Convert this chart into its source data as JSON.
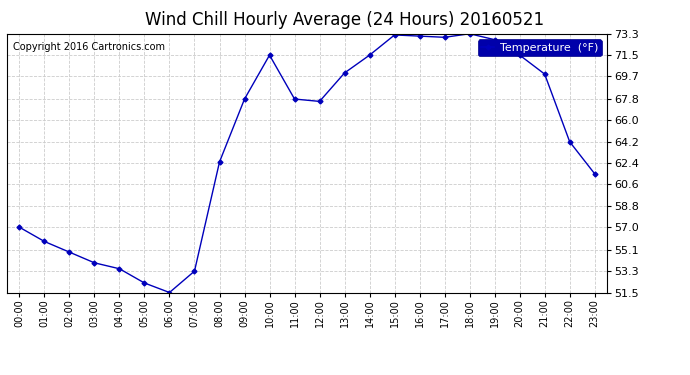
{
  "title": "Wind Chill Hourly Average (24 Hours) 20160521",
  "copyright": "Copyright 2016 Cartronics.com",
  "legend_label": "Temperature  (°F)",
  "hours": [
    "00:00",
    "01:00",
    "02:00",
    "03:00",
    "04:00",
    "05:00",
    "06:00",
    "07:00",
    "08:00",
    "09:00",
    "10:00",
    "11:00",
    "12:00",
    "13:00",
    "14:00",
    "15:00",
    "16:00",
    "17:00",
    "18:00",
    "19:00",
    "20:00",
    "21:00",
    "22:00",
    "23:00"
  ],
  "values": [
    57.0,
    55.8,
    54.9,
    54.0,
    53.5,
    52.3,
    51.5,
    53.3,
    62.5,
    67.8,
    71.5,
    67.8,
    67.6,
    70.0,
    71.5,
    73.2,
    73.1,
    73.0,
    73.3,
    72.8,
    71.5,
    69.9,
    64.2,
    61.5
  ],
  "ylim": [
    51.5,
    73.3
  ],
  "yticks": [
    51.5,
    53.3,
    55.1,
    57.0,
    58.8,
    60.6,
    62.4,
    64.2,
    66.0,
    67.8,
    69.7,
    71.5,
    73.3
  ],
  "line_color": "#0000bb",
  "marker": "D",
  "marker_size": 2.5,
  "bg_color": "#ffffff",
  "plot_bg_color": "#ffffff",
  "grid_color": "#cccccc",
  "title_fontsize": 12,
  "copyright_fontsize": 7,
  "legend_bg_color": "#0000aa",
  "legend_text_color": "#ffffff",
  "xtick_fontsize": 7,
  "ytick_fontsize": 8
}
